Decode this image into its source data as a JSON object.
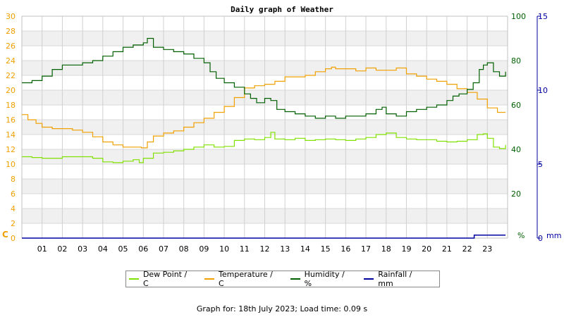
{
  "chart_data": {
    "type": "line",
    "title": "Daily graph of Weather",
    "x_ticks": [
      "01",
      "02",
      "03",
      "04",
      "05",
      "06",
      "07",
      "08",
      "09",
      "10",
      "11",
      "12",
      "13",
      "14",
      "15",
      "16",
      "17",
      "18",
      "19",
      "20",
      "21",
      "22",
      "23"
    ],
    "xlim": [
      0,
      24
    ],
    "y_left": {
      "unit": "C",
      "ticks": [
        0,
        2,
        4,
        6,
        8,
        10,
        12,
        14,
        16,
        18,
        20,
        22,
        24,
        26,
        28,
        30
      ],
      "ylim": [
        0,
        30
      ]
    },
    "y_right_humidity": {
      "unit": "%",
      "ticks": [
        0,
        20,
        40,
        60,
        80,
        100
      ],
      "ylim": [
        0,
        100
      ]
    },
    "y_right_rain": {
      "unit": "mm",
      "ticks": [
        0,
        5,
        10,
        15
      ],
      "ylim": [
        0,
        15
      ]
    },
    "grid": true,
    "legend_position": "bottom",
    "series": [
      {
        "name": "Dew Point / C",
        "color": "#80e000",
        "axis": "left",
        "x": [
          0,
          0.5,
          1,
          1.5,
          2,
          2.5,
          3,
          3.5,
          4,
          4.5,
          5,
          5.5,
          5.8,
          6,
          6.5,
          7,
          7.5,
          8,
          8.5,
          9,
          9.5,
          10,
          10.5,
          11,
          11.5,
          12,
          12.3,
          12.5,
          13,
          13.5,
          14,
          14.5,
          15,
          15.5,
          16,
          16.5,
          17,
          17.5,
          18,
          18.5,
          19,
          19.5,
          20,
          20.5,
          21,
          21.5,
          22,
          22.5,
          22.8,
          23,
          23.3,
          23.6,
          23.9
        ],
        "values": [
          11.0,
          10.9,
          10.8,
          10.8,
          11.0,
          11.0,
          11.0,
          10.8,
          10.3,
          10.2,
          10.4,
          10.6,
          10.2,
          10.8,
          11.5,
          11.6,
          11.8,
          12.0,
          12.3,
          12.6,
          12.3,
          12.4,
          13.2,
          13.4,
          13.3,
          13.6,
          14.3,
          13.4,
          13.3,
          13.5,
          13.2,
          13.3,
          13.4,
          13.3,
          13.2,
          13.4,
          13.6,
          14.0,
          14.2,
          13.6,
          13.4,
          13.3,
          13.3,
          13.1,
          13.0,
          13.1,
          13.3,
          14.0,
          14.1,
          13.5,
          12.3,
          12.1,
          12.6
        ]
      },
      {
        "name": "Temperature / C",
        "color": "#f0a000",
        "axis": "left",
        "x": [
          0,
          0.3,
          0.7,
          1,
          1.5,
          2,
          2.5,
          3,
          3.5,
          4,
          4.5,
          5,
          5.5,
          5.9,
          6.2,
          6.5,
          7,
          7.5,
          8,
          8.5,
          9,
          9.5,
          10,
          10.5,
          11,
          11.5,
          12,
          12.5,
          13,
          13.5,
          14,
          14.5,
          15,
          15.3,
          15.5,
          16,
          16.5,
          17,
          17.5,
          18,
          18.5,
          19,
          19.5,
          20,
          20.5,
          21,
          21.5,
          22,
          22.5,
          23,
          23.5,
          23.9
        ],
        "values": [
          16.7,
          16.0,
          15.5,
          15.0,
          14.8,
          14.8,
          14.6,
          14.3,
          13.7,
          13.0,
          12.6,
          12.3,
          12.3,
          12.2,
          13.0,
          13.8,
          14.2,
          14.5,
          15.0,
          15.6,
          16.2,
          17.0,
          17.8,
          19.0,
          20.3,
          20.6,
          20.8,
          21.2,
          21.8,
          21.8,
          22.0,
          22.5,
          22.9,
          23.1,
          22.9,
          22.9,
          22.6,
          23.0,
          22.7,
          22.7,
          23.0,
          22.2,
          21.9,
          21.5,
          21.2,
          20.8,
          20.2,
          19.7,
          18.8,
          17.6,
          17.0,
          17.0
        ]
      },
      {
        "name": "Humidity / %",
        "color": "#006000",
        "axis": "humidity",
        "x": [
          0,
          0.5,
          1,
          1.5,
          2,
          2.5,
          3,
          3.5,
          4,
          4.5,
          5,
          5.5,
          5.8,
          6,
          6.2,
          6.5,
          7,
          7.5,
          8,
          8.5,
          9,
          9.3,
          9.6,
          10,
          10.5,
          11,
          11.3,
          11.6,
          12,
          12.3,
          12.6,
          13,
          13.5,
          14,
          14.5,
          15,
          15.5,
          16,
          16.5,
          17,
          17.5,
          17.8,
          18,
          18.5,
          19,
          19.5,
          20,
          20.5,
          21,
          21.3,
          21.6,
          22,
          22.3,
          22.6,
          22.8,
          23,
          23.3,
          23.6,
          23.9
        ],
        "values": [
          70,
          71,
          73,
          76,
          78,
          78,
          79,
          80,
          82,
          84,
          86,
          87,
          87,
          88,
          90,
          86,
          85,
          84,
          83,
          81,
          79,
          75,
          72,
          70,
          68,
          65,
          63,
          61,
          63,
          62,
          58,
          57,
          56,
          55,
          54,
          55,
          54,
          55,
          55,
          56,
          58,
          59,
          56,
          55,
          57,
          58,
          59,
          60,
          62,
          64,
          65,
          67,
          70,
          76,
          78,
          79,
          75,
          73,
          75
        ]
      },
      {
        "name": "Rainfall / mm",
        "color": "#0000a0",
        "axis": "rain",
        "x": [
          0,
          22.3,
          22.35,
          23.9
        ],
        "values": [
          0,
          0,
          0.2,
          0.2
        ]
      }
    ]
  },
  "legend": {
    "items": [
      {
        "label": "Dew Point / C",
        "color": "#80e000"
      },
      {
        "label": "Temperature / C",
        "color": "#f0a000"
      },
      {
        "label": "Humidity / %",
        "color": "#006000"
      },
      {
        "label": "Rainfall / mm",
        "color": "#0000a0"
      }
    ]
  },
  "footer": {
    "text": "Graph for: 18th July 2023; Load time: 0.09 s"
  }
}
